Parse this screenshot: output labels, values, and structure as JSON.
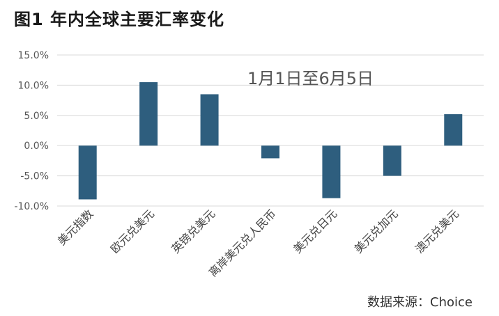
{
  "figure": {
    "title": "图1  年内全球主要汇率变化"
  },
  "source": "数据来源：Choice",
  "chart_data": {
    "type": "bar",
    "title": "",
    "annotation": "1月1日至6月5日",
    "categories": [
      "美元指数",
      "欧元兑美元",
      "英镑兑美元",
      "离岸美元兑人民币",
      "美元兑日元",
      "美元兑加元",
      "澳元兑美元"
    ],
    "values": [
      -8.9,
      10.5,
      8.5,
      -2.1,
      -8.7,
      -5.0,
      5.2
    ],
    "ylim": [
      -10,
      15
    ],
    "yticks": [
      "15.0%",
      "10.0%",
      "5.0%",
      "0.0%",
      "-5.0%",
      "-10.0%"
    ],
    "ytick_values": [
      15,
      10,
      5,
      0,
      -5,
      -10
    ],
    "xlabel": "",
    "ylabel": "",
    "grid": true,
    "bar_color": "#2e5e7e",
    "grid_color": "#d9d9d9"
  }
}
